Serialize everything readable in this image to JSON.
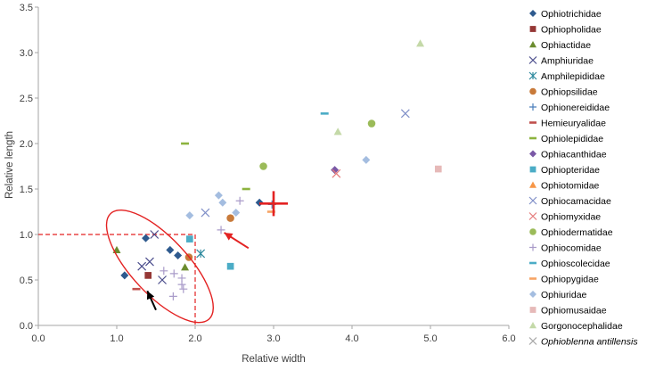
{
  "chart_data": {
    "type": "scatter",
    "xlabel": "Relative width",
    "ylabel": "Relative length",
    "xlim": [
      0,
      6
    ],
    "ylim": [
      0,
      3.5
    ],
    "x_ticks": [
      0,
      1,
      2,
      3,
      4,
      5,
      6
    ],
    "y_ticks": [
      0,
      0.5,
      1,
      1.5,
      2,
      2.5,
      3,
      3.5
    ],
    "x_tick_labels": [
      "0.0",
      "1.0",
      "2.0",
      "3.0",
      "4.0",
      "5.0",
      "6.0"
    ],
    "y_tick_labels": [
      "0.0",
      "0.5",
      "1.0",
      "1.5",
      "2.0",
      "2.5",
      "3.0",
      "3.5"
    ],
    "grid": false,
    "legend_position": "right",
    "series": [
      {
        "name": "Ophiotrichidae",
        "marker": "diamond",
        "color": "#2E5A8E",
        "points": [
          [
            1.1,
            0.55
          ],
          [
            1.37,
            0.96
          ],
          [
            1.68,
            0.83
          ],
          [
            1.78,
            0.77
          ],
          [
            2.82,
            1.35
          ]
        ]
      },
      {
        "name": "Ophiopholidae",
        "marker": "square",
        "color": "#953735",
        "points": [
          [
            1.4,
            0.55
          ]
        ]
      },
      {
        "name": "Ophiactidae",
        "marker": "triangle",
        "color": "#6B8C2E",
        "points": [
          [
            1.0,
            0.83
          ],
          [
            1.87,
            0.64
          ]
        ]
      },
      {
        "name": "Amphiuridae",
        "marker": "x",
        "color": "#4B4D8C",
        "points": [
          [
            1.32,
            0.65
          ],
          [
            1.42,
            0.7
          ],
          [
            1.58,
            0.5
          ],
          [
            1.48,
            1.0
          ]
        ]
      },
      {
        "name": "Amphilepididae",
        "marker": "asterisk",
        "color": "#2E8A9E",
        "points": [
          [
            2.07,
            0.79
          ]
        ]
      },
      {
        "name": "Ophiopsilidae",
        "marker": "circle",
        "color": "#C87A3A",
        "points": [
          [
            1.92,
            0.75
          ],
          [
            2.45,
            1.18
          ]
        ]
      },
      {
        "name": "Ophionereididae",
        "marker": "plus",
        "color": "#4A7EBB",
        "points": [
          [
            2.98,
            1.33
          ]
        ]
      },
      {
        "name": "Hemieuryalidae",
        "marker": "dash",
        "color": "#C0504D",
        "points": [
          [
            1.25,
            0.4
          ]
        ]
      },
      {
        "name": "Ophiolepididae",
        "marker": "dash",
        "color": "#8DB33E",
        "points": [
          [
            1.87,
            2.0
          ],
          [
            2.65,
            1.5
          ]
        ]
      },
      {
        "name": "Ophiacanthidae",
        "marker": "diamond",
        "color": "#7A58A6",
        "points": [
          [
            3.78,
            1.71
          ]
        ]
      },
      {
        "name": "Ophiopteridae",
        "marker": "square",
        "color": "#4BACC6",
        "points": [
          [
            1.93,
            0.95
          ],
          [
            2.45,
            0.65
          ]
        ]
      },
      {
        "name": "Ophiotomidae",
        "marker": "triangle",
        "color": "#F79646",
        "points": []
      },
      {
        "name": "Ophiocamacidae",
        "marker": "x",
        "color": "#7F8FC8",
        "points": [
          [
            2.13,
            1.24
          ],
          [
            4.68,
            2.33
          ]
        ]
      },
      {
        "name": "Ophiomyxidae",
        "marker": "x",
        "color": "#E57A7A",
        "points": [
          [
            3.8,
            1.67
          ]
        ]
      },
      {
        "name": "Ophiodermatidae",
        "marker": "circle",
        "color": "#9BBB59",
        "points": [
          [
            2.87,
            1.75
          ],
          [
            4.25,
            2.22
          ]
        ]
      },
      {
        "name": "Ophiocomidae",
        "marker": "plus",
        "color": "#A99BC9",
        "points": [
          [
            1.6,
            0.6
          ],
          [
            1.73,
            0.57
          ],
          [
            1.83,
            0.52
          ],
          [
            1.83,
            0.45
          ],
          [
            1.85,
            0.4
          ],
          [
            1.72,
            0.32
          ],
          [
            2.33,
            1.05
          ],
          [
            2.57,
            1.37
          ]
        ]
      },
      {
        "name": "Ophioscolecidae",
        "marker": "dash",
        "color": "#4BACC6",
        "points": [
          [
            3.65,
            2.33
          ]
        ]
      },
      {
        "name": "Ophiopygidae",
        "marker": "dash",
        "color": "#F7A465",
        "points": [
          [
            2.97,
            1.25
          ]
        ]
      },
      {
        "name": "Ophiuridae",
        "marker": "diamond",
        "color": "#A4BDE0",
        "points": [
          [
            1.93,
            1.21
          ],
          [
            2.3,
            1.43
          ],
          [
            2.35,
            1.35
          ],
          [
            2.52,
            1.24
          ],
          [
            4.18,
            1.82
          ]
        ]
      },
      {
        "name": "Ophiomusaidae",
        "marker": "square",
        "color": "#E6B9B8",
        "points": [
          [
            5.1,
            1.72
          ]
        ]
      },
      {
        "name": "Gorgonocephalidae",
        "marker": "triangle",
        "color": "#C4D9A8",
        "points": [
          [
            3.82,
            2.13
          ],
          [
            4.87,
            3.1
          ]
        ]
      },
      {
        "name": "Ophioblenna antillensis",
        "italic": true,
        "marker": "x",
        "color": "#A6A6A6",
        "points": []
      }
    ],
    "annotations": {
      "ellipse": {
        "cx": 1.55,
        "cy": 0.65,
        "rx": 0.92,
        "ry": 0.36,
        "angle_deg": 47,
        "color": "#E32222"
      },
      "dashed_guides": {
        "x": 2.0,
        "y": 1.0,
        "color": "#E32222"
      },
      "highlight_cross": {
        "x": 3.0,
        "y": 1.34,
        "color": "#E32222"
      },
      "red_arrow": {
        "from": [
          2.68,
          0.85
        ],
        "to": [
          2.37,
          1.02
        ],
        "color": "#E32222"
      },
      "black_arrow": {
        "from": [
          1.5,
          0.17
        ],
        "to": [
          1.39,
          0.38
        ],
        "color": "#000000"
      }
    }
  }
}
